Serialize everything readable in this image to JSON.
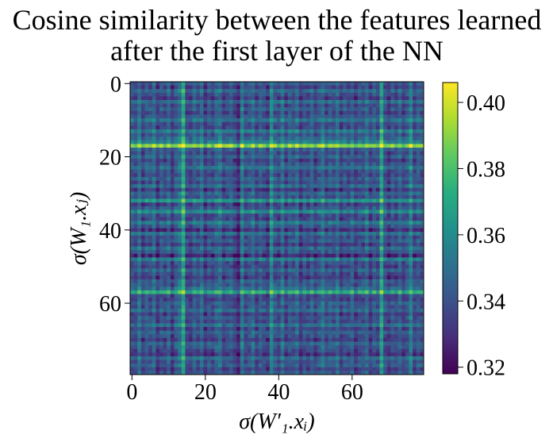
{
  "chart_data": {
    "type": "heatmap",
    "title_lines": [
      "Cosine similarity between the features learned",
      "after the first layer of the NN"
    ],
    "xlabel": "σ(W′₁.xᵢ)",
    "ylabel": "σ(W₁.xⱼ)",
    "size": 80,
    "x_ticks": [
      "0",
      "20",
      "40",
      "60"
    ],
    "y_ticks": [
      "0",
      "20",
      "40",
      "60"
    ],
    "x_tick_values": [
      0,
      20,
      40,
      60
    ],
    "y_tick_values": [
      0,
      20,
      40,
      60
    ],
    "colorbar": {
      "colormap": "viridis",
      "vmin": 0.318,
      "vmax": 0.406,
      "tick_values": [
        0.32,
        0.34,
        0.36,
        0.38,
        0.4
      ],
      "tick_labels": [
        "0.32",
        "0.34",
        "0.36",
        "0.38",
        "0.40"
      ]
    },
    "row_profile": [
      0.345,
      0.338,
      0.35,
      0.342,
      0.336,
      0.352,
      0.34,
      0.347,
      0.338,
      0.344,
      0.354,
      0.341,
      0.339,
      0.356,
      0.343,
      0.35,
      0.358,
      0.392,
      0.346,
      0.34,
      0.348,
      0.338,
      0.344,
      0.352,
      0.342,
      0.339,
      0.346,
      0.34,
      0.35,
      0.335,
      0.348,
      0.342,
      0.366,
      0.336,
      0.345,
      0.362,
      0.341,
      0.338,
      0.355,
      0.344,
      0.332,
      0.352,
      0.34,
      0.346,
      0.336,
      0.35,
      0.344,
      0.33,
      0.356,
      0.342,
      0.338,
      0.348,
      0.34,
      0.336,
      0.346,
      0.344,
      0.352,
      0.375,
      0.341,
      0.338,
      0.346,
      0.342,
      0.35,
      0.336,
      0.344,
      0.34,
      0.352,
      0.338,
      0.346,
      0.342,
      0.336,
      0.348,
      0.344,
      0.34,
      0.334,
      0.35,
      0.342,
      0.346,
      0.338,
      0.344
    ],
    "col_profile": [
      0.344,
      0.34,
      0.352,
      0.338,
      0.346,
      0.342,
      0.35,
      0.336,
      0.345,
      0.34,
      0.348,
      0.335,
      0.346,
      0.352,
      0.372,
      0.34,
      0.338,
      0.346,
      0.342,
      0.35,
      0.336,
      0.344,
      0.34,
      0.348,
      0.352,
      0.339,
      0.342,
      0.346,
      0.338,
      0.33,
      0.356,
      0.34,
      0.344,
      0.35,
      0.338,
      0.346,
      0.342,
      0.336,
      0.36,
      0.344,
      0.34,
      0.352,
      0.338,
      0.346,
      0.342,
      0.35,
      0.336,
      0.344,
      0.34,
      0.348,
      0.338,
      0.344,
      0.352,
      0.34,
      0.346,
      0.342,
      0.35,
      0.338,
      0.344,
      0.34,
      0.348,
      0.336,
      0.344,
      0.342,
      0.35,
      0.338,
      0.346,
      0.34,
      0.368,
      0.342,
      0.336,
      0.344,
      0.34,
      0.348,
      0.338,
      0.344,
      0.358,
      0.34,
      0.346,
      0.342
    ]
  }
}
